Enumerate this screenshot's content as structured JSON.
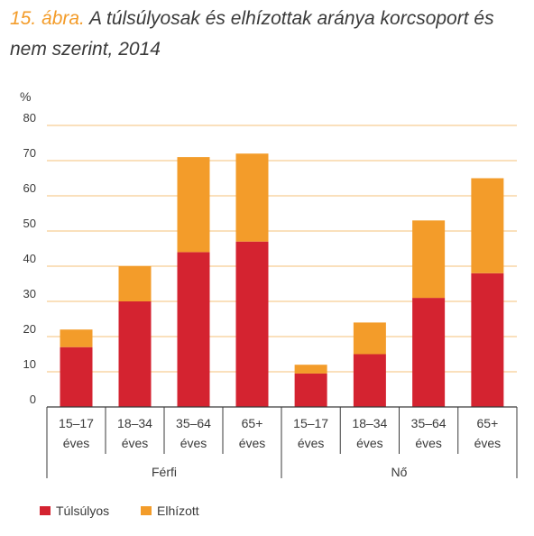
{
  "title": {
    "number": "15. ábra.",
    "text": "A túlsúlyosak és elhízottak aránya korcsoport és nem szerint, 2014"
  },
  "colors": {
    "tulsulyos": "#d42330",
    "elhizott": "#f39c2a",
    "grid": "#f5c07a",
    "axis": "#3a3a3a",
    "title_accent": "#f39c2a"
  },
  "chart_data": {
    "type": "bar",
    "stacked": true,
    "ylabel": "%",
    "ylim": [
      0,
      80
    ],
    "yticks": [
      0,
      10,
      20,
      30,
      40,
      50,
      60,
      70,
      80
    ],
    "grid": true,
    "legend_position": "bottom-left",
    "groups": [
      {
        "name": "Férfi",
        "categories": [
          "15–17 éves",
          "18–34 éves",
          "35–64 éves",
          "65+ éves"
        ]
      },
      {
        "name": "Nő",
        "categories": [
          "15–17 éves",
          "18–34 éves",
          "35–64 éves",
          "65+ éves"
        ]
      }
    ],
    "category_lines": [
      [
        "15–17",
        "éves"
      ],
      [
        "18–34",
        "éves"
      ],
      [
        "35–64",
        "éves"
      ],
      [
        "65+",
        "éves"
      ],
      [
        "15–17",
        "éves"
      ],
      [
        "18–34",
        "éves"
      ],
      [
        "35–64",
        "éves"
      ],
      [
        "65+",
        "éves"
      ]
    ],
    "series": [
      {
        "name": "Túlsúlyos",
        "color": "#d42330",
        "values": [
          17,
          30,
          44,
          47,
          9.5,
          15,
          31,
          38
        ]
      },
      {
        "name": "Elhízott",
        "color": "#f39c2a",
        "values": [
          5,
          10,
          27,
          25,
          2.5,
          9,
          22,
          27
        ]
      }
    ]
  }
}
